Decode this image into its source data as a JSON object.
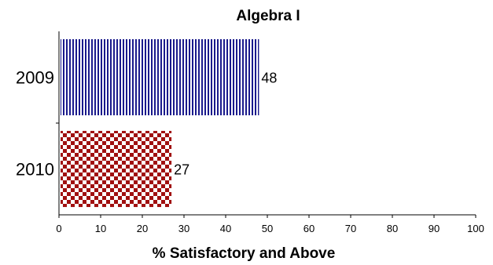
{
  "chart_data": {
    "type": "bar",
    "orientation": "horizontal",
    "title": "Algebra I",
    "xlabel": "% Satisfactory and Above",
    "ylabel": "",
    "xlim": [
      0,
      100
    ],
    "xticks": [
      0,
      10,
      20,
      30,
      40,
      50,
      60,
      70,
      80,
      90,
      100
    ],
    "categories": [
      "2009",
      "2010"
    ],
    "values": [
      48,
      27
    ],
    "data_labels": [
      "48",
      "27"
    ],
    "bar_styles": [
      {
        "pattern": "vertical-stripes",
        "color": "#1a1a8c"
      },
      {
        "pattern": "checkerboard",
        "color": "#a01010"
      }
    ],
    "grid": false,
    "legend": "none"
  }
}
